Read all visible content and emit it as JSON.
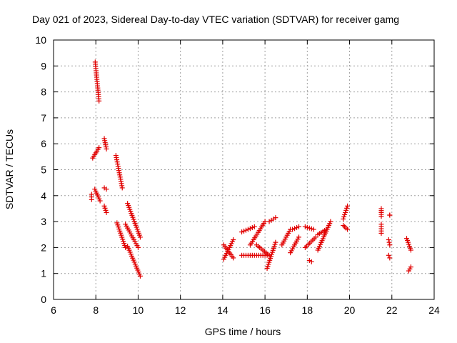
{
  "chart_data": {
    "type": "scatter",
    "title": "Day 021 of 2023, Sidereal Day-to-day VTEC variation (SDTVAR) for receiver gamg",
    "xlabel": "GPS time / hours",
    "ylabel": "SDTVAR / TECUs",
    "xlim": [
      6,
      24
    ],
    "ylim": [
      0,
      10
    ],
    "xticks": [
      "6",
      "8",
      "10",
      "12",
      "14",
      "16",
      "18",
      "20",
      "22",
      "24"
    ],
    "yticks": [
      "0",
      "1",
      "2",
      "3",
      "4",
      "5",
      "6",
      "7",
      "8",
      "9",
      "10"
    ],
    "grid": true,
    "marker": "+",
    "color": "#e00000",
    "segments": [
      {
        "x0": 7.97,
        "x1": 8.15,
        "y0": 9.15,
        "y1": 7.65
      },
      {
        "x0": 7.85,
        "x1": 8.15,
        "y0": 5.45,
        "y1": 5.85
      },
      {
        "x0": 7.95,
        "x1": 8.2,
        "y0": 4.25,
        "y1": 3.8
      },
      {
        "x0": 7.8,
        "x1": 7.8,
        "y0": 4.05,
        "y1": 3.85
      },
      {
        "x0": 8.4,
        "x1": 8.5,
        "y0": 6.2,
        "y1": 5.8
      },
      {
        "x0": 8.4,
        "x1": 8.5,
        "y0": 4.3,
        "y1": 4.25
      },
      {
        "x0": 8.4,
        "x1": 8.5,
        "y0": 3.6,
        "y1": 3.35
      },
      {
        "x0": 8.95,
        "x1": 9.25,
        "y0": 5.55,
        "y1": 4.3
      },
      {
        "x0": 9.0,
        "x1": 9.4,
        "y0": 2.95,
        "y1": 2.0
      },
      {
        "x0": 9.5,
        "x1": 10.1,
        "y0": 3.7,
        "y1": 2.4
      },
      {
        "x0": 9.5,
        "x1": 10.1,
        "y0": 2.05,
        "y1": 0.9
      },
      {
        "x0": 9.4,
        "x1": 10.0,
        "y0": 2.9,
        "y1": 2.0
      },
      {
        "x0": 14.05,
        "x1": 14.5,
        "y0": 1.55,
        "y1": 2.3
      },
      {
        "x0": 14.05,
        "x1": 14.5,
        "y0": 2.1,
        "y1": 1.6
      },
      {
        "x0": 14.9,
        "x1": 16.1,
        "y0": 1.7,
        "y1": 1.7
      },
      {
        "x0": 15.3,
        "x1": 16.0,
        "y0": 2.1,
        "y1": 3.0
      },
      {
        "x0": 14.9,
        "x1": 15.5,
        "y0": 2.6,
        "y1": 2.8
      },
      {
        "x0": 15.6,
        "x1": 16.2,
        "y0": 2.1,
        "y1": 1.7
      },
      {
        "x0": 16.1,
        "x1": 16.5,
        "y0": 1.2,
        "y1": 2.2
      },
      {
        "x0": 16.2,
        "x1": 16.5,
        "y0": 3.0,
        "y1": 3.15
      },
      {
        "x0": 16.8,
        "x1": 17.2,
        "y0": 2.1,
        "y1": 2.7
      },
      {
        "x0": 17.2,
        "x1": 17.6,
        "y0": 1.8,
        "y1": 2.4
      },
      {
        "x0": 17.3,
        "x1": 17.6,
        "y0": 2.7,
        "y1": 2.8
      },
      {
        "x0": 17.9,
        "x1": 18.4,
        "y0": 2.0,
        "y1": 2.4
      },
      {
        "x0": 17.9,
        "x1": 18.3,
        "y0": 2.8,
        "y1": 2.7
      },
      {
        "x0": 18.1,
        "x1": 18.2,
        "y0": 1.5,
        "y1": 1.45
      },
      {
        "x0": 18.5,
        "x1": 19.1,
        "y0": 1.9,
        "y1": 3.0
      },
      {
        "x0": 18.5,
        "x1": 18.9,
        "y0": 2.5,
        "y1": 2.7
      },
      {
        "x0": 19.7,
        "x1": 19.9,
        "y0": 3.1,
        "y1": 3.6
      },
      {
        "x0": 19.7,
        "x1": 19.9,
        "y0": 2.85,
        "y1": 2.7
      },
      {
        "x0": 21.5,
        "x1": 21.5,
        "y0": 3.5,
        "y1": 3.2
      },
      {
        "x0": 21.5,
        "x1": 21.5,
        "y0": 2.9,
        "y1": 2.55
      },
      {
        "x0": 21.9,
        "x1": 21.9,
        "y0": 3.25,
        "y1": 3.25
      },
      {
        "x0": 21.85,
        "x1": 21.9,
        "y0": 2.3,
        "y1": 2.1
      },
      {
        "x0": 21.85,
        "x1": 21.9,
        "y0": 1.7,
        "y1": 1.6
      },
      {
        "x0": 22.7,
        "x1": 22.9,
        "y0": 2.35,
        "y1": 1.9
      },
      {
        "x0": 22.8,
        "x1": 22.9,
        "y0": 1.1,
        "y1": 1.25
      }
    ]
  }
}
